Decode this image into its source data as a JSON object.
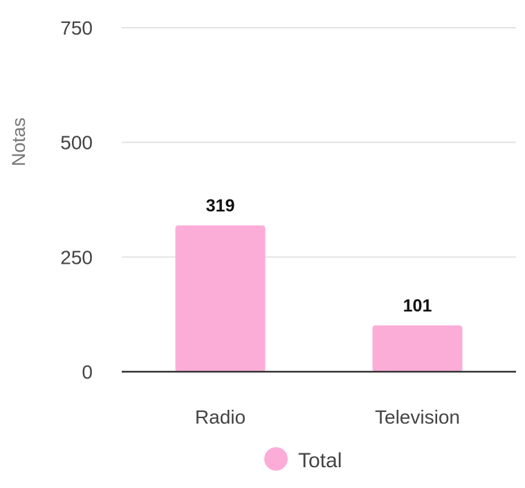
{
  "chart_data": {
    "type": "bar",
    "categories": [
      "Radio",
      "Television"
    ],
    "series": [
      {
        "name": "Total",
        "values": [
          319,
          101
        ],
        "color": "#fbadd8"
      }
    ],
    "title": "",
    "xlabel": "",
    "ylabel": "Notas",
    "ylim": [
      0,
      750
    ],
    "yticks": [
      0,
      250,
      500,
      750
    ],
    "grid": true,
    "legend": "bottom-center",
    "data_labels": true
  }
}
